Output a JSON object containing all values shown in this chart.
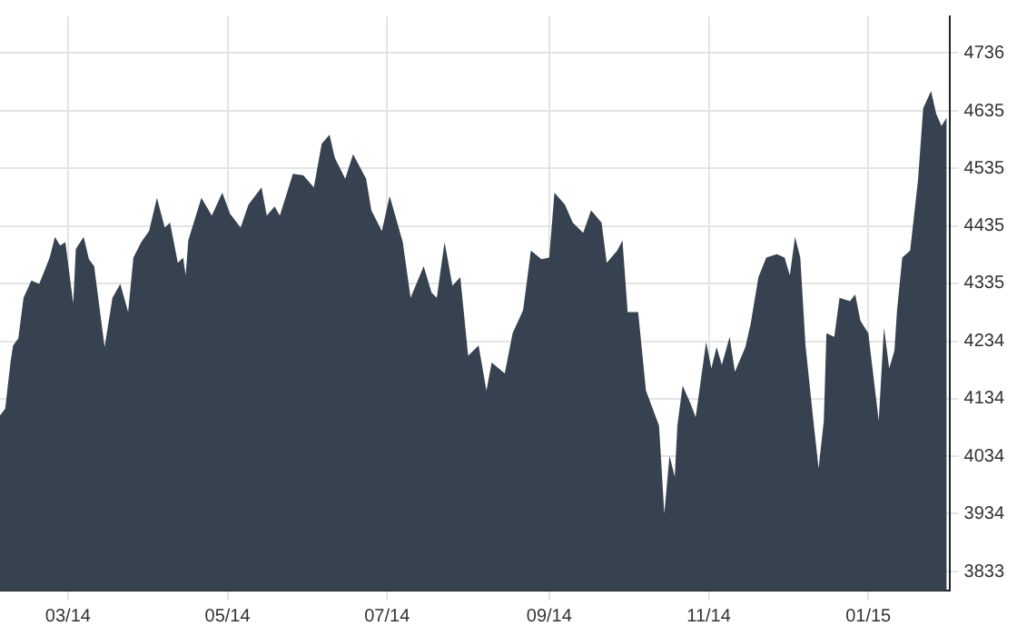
{
  "chart_data": {
    "type": "area",
    "x": [
      "2014-02-03",
      "2014-02-05",
      "2014-02-07",
      "2014-02-08",
      "2014-02-10",
      "2014-02-12",
      "2014-02-15",
      "2014-02-18",
      "2014-02-22",
      "2014-02-24",
      "2014-02-26",
      "2014-02-28",
      "2014-03-03",
      "2014-03-04",
      "2014-03-07",
      "2014-03-09",
      "2014-03-11",
      "2014-03-15",
      "2014-03-18",
      "2014-03-21",
      "2014-03-24",
      "2014-03-26",
      "2014-03-29",
      "2014-04-01",
      "2014-04-04",
      "2014-04-07",
      "2014-04-09",
      "2014-04-12",
      "2014-04-14",
      "2014-04-15",
      "2014-04-16",
      "2014-04-21",
      "2014-04-25",
      "2014-04-29",
      "2014-05-02",
      "2014-05-06",
      "2014-05-09",
      "2014-05-14",
      "2014-05-16",
      "2014-05-19",
      "2014-05-21",
      "2014-05-26",
      "2014-05-30",
      "2014-06-03",
      "2014-06-06",
      "2014-06-09",
      "2014-06-11",
      "2014-06-15",
      "2014-06-18",
      "2014-06-23",
      "2014-06-25",
      "2014-06-29",
      "2014-07-02",
      "2014-07-07",
      "2014-07-10",
      "2014-07-15",
      "2014-07-18",
      "2014-07-20",
      "2014-07-23",
      "2014-07-26",
      "2014-07-29",
      "2014-08-01",
      "2014-08-05",
      "2014-08-08",
      "2014-08-10",
      "2014-08-15",
      "2014-08-18",
      "2014-08-22",
      "2014-08-25",
      "2014-08-29",
      "2014-09-01",
      "2014-09-03",
      "2014-09-07",
      "2014-09-10",
      "2014-09-14",
      "2014-09-17",
      "2014-09-21",
      "2014-09-23",
      "2014-09-27",
      "2014-09-29",
      "2014-10-01",
      "2014-10-05",
      "2014-10-08",
      "2014-10-13",
      "2014-10-15",
      "2014-10-17",
      "2014-10-19",
      "2014-10-20",
      "2014-10-22",
      "2014-10-25",
      "2014-10-27",
      "2014-10-31",
      "2014-11-02",
      "2014-11-04",
      "2014-11-06",
      "2014-11-09",
      "2014-11-11",
      "2014-11-15",
      "2014-11-17",
      "2014-11-20",
      "2014-11-23",
      "2014-11-27",
      "2014-11-30",
      "2014-12-02",
      "2014-12-04",
      "2014-12-06",
      "2014-12-08",
      "2014-12-11",
      "2014-12-13",
      "2014-12-15",
      "2014-12-16",
      "2014-12-19",
      "2014-12-21",
      "2014-12-25",
      "2014-12-27",
      "2014-12-29",
      "2015-01-01",
      "2015-01-05",
      "2015-01-07",
      "2015-01-09",
      "2015-01-11",
      "2015-01-12",
      "2015-01-14",
      "2015-01-17",
      "2015-01-20",
      "2015-01-22",
      "2015-01-25",
      "2015-01-27",
      "2015-01-29",
      "2015-01-31"
    ],
    "series": [
      {
        "color": "#36424f",
        "values": [
          4105,
          4117,
          4197,
          4227,
          4239,
          4310,
          4340,
          4334,
          4380,
          4416,
          4401,
          4407,
          4300,
          4395,
          4416,
          4377,
          4365,
          4224,
          4310,
          4334,
          4285,
          4380,
          4407,
          4426,
          4484,
          4432,
          4441,
          4371,
          4380,
          4349,
          4410,
          4484,
          4453,
          4493,
          4456,
          4432,
          4472,
          4502,
          4453,
          4469,
          4453,
          4526,
          4523,
          4502,
          4578,
          4594,
          4554,
          4517,
          4560,
          4517,
          4462,
          4426,
          4487,
          4407,
          4310,
          4365,
          4319,
          4310,
          4407,
          4331,
          4346,
          4209,
          4227,
          4148,
          4197,
          4178,
          4248,
          4288,
          4392,
          4377,
          4380,
          4493,
          4472,
          4441,
          4423,
          4462,
          4441,
          4371,
          4392,
          4410,
          4285,
          4285,
          4148,
          4087,
          3934,
          4035,
          3998,
          4087,
          4157,
          4126,
          4102,
          4233,
          4187,
          4224,
          4193,
          4242,
          4181,
          4224,
          4264,
          4346,
          4380,
          4386,
          4380,
          4349,
          4416,
          4380,
          4227,
          4096,
          4013,
          4096,
          4248,
          4242,
          4310,
          4304,
          4316,
          4270,
          4248,
          4096,
          4258,
          4187,
          4218,
          4288,
          4380,
          4392,
          4514,
          4640,
          4670,
          4630,
          4609,
          4624
        ]
      }
    ],
    "xlim": [
      "2014-02-03",
      "2015-02-01"
    ],
    "xticks": [
      {
        "value": "2014-03-01",
        "label": "03/14"
      },
      {
        "value": "2014-05-01",
        "label": "05/14"
      },
      {
        "value": "2014-07-01",
        "label": "07/14"
      },
      {
        "value": "2014-09-01",
        "label": "09/14"
      },
      {
        "value": "2014-11-01",
        "label": "11/14"
      },
      {
        "value": "2015-01-01",
        "label": "01/15"
      }
    ],
    "ylim": [
      3800,
      4800
    ],
    "yticks": [
      3833,
      3934,
      4034,
      4134,
      4234,
      4335,
      4435,
      4535,
      4635,
      4736
    ],
    "grid": true
  }
}
